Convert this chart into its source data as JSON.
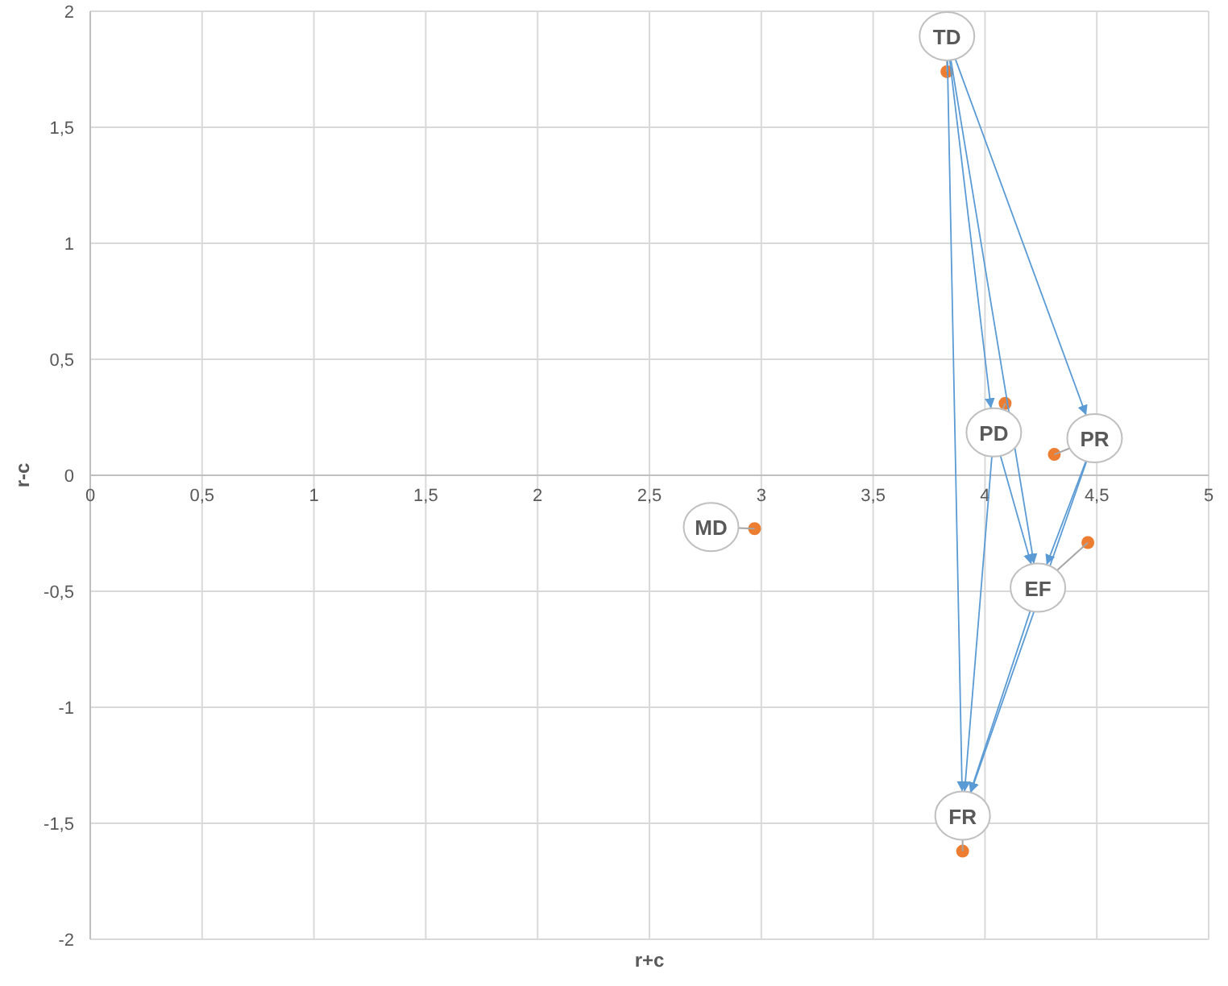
{
  "chart_data": {
    "type": "scatter",
    "xlabel": "r+c",
    "ylabel": "r-c",
    "xlim": [
      0,
      5
    ],
    "ylim": [
      -2,
      2
    ],
    "xticks": [
      0,
      {
        "value": 0.5,
        "label": "0,5"
      },
      1,
      {
        "value": 1.5,
        "label": "1,5"
      },
      2,
      {
        "value": 2.5,
        "label": "2,5"
      },
      3,
      {
        "value": 3.5,
        "label": "3,5"
      },
      4,
      {
        "value": 4.5,
        "label": "4,5"
      },
      5
    ],
    "yticks": [
      -2,
      {
        "value": -1.5,
        "label": "-1,5"
      },
      -1,
      {
        "value": -0.5,
        "label": "-0,5"
      },
      0,
      {
        "value": 0.5,
        "label": "0,5"
      },
      1,
      {
        "value": 1.5,
        "label": "1,5"
      },
      2
    ],
    "grid": true,
    "marker": "circle",
    "series": [
      {
        "color": "#ed7d31",
        "x": [
          3.83,
          4.09,
          4.31,
          4.46,
          2.97,
          3.9
        ],
        "values": [
          1.74,
          0.31,
          0.09,
          -0.29,
          -0.23,
          -1.62
        ]
      }
    ],
    "annotations": [
      {
        "text": "TD",
        "x": 3.83,
        "y": 1.74
      },
      {
        "text": "PD",
        "x": 4.09,
        "y": 0.31
      },
      {
        "text": "PR",
        "x": 4.31,
        "y": 0.09
      },
      {
        "text": "EF",
        "x": 4.46,
        "y": -0.29
      },
      {
        "text": "MD",
        "x": 2.97,
        "y": -0.23
      },
      {
        "text": "FR",
        "x": 3.9,
        "y": -1.62
      }
    ]
  }
}
